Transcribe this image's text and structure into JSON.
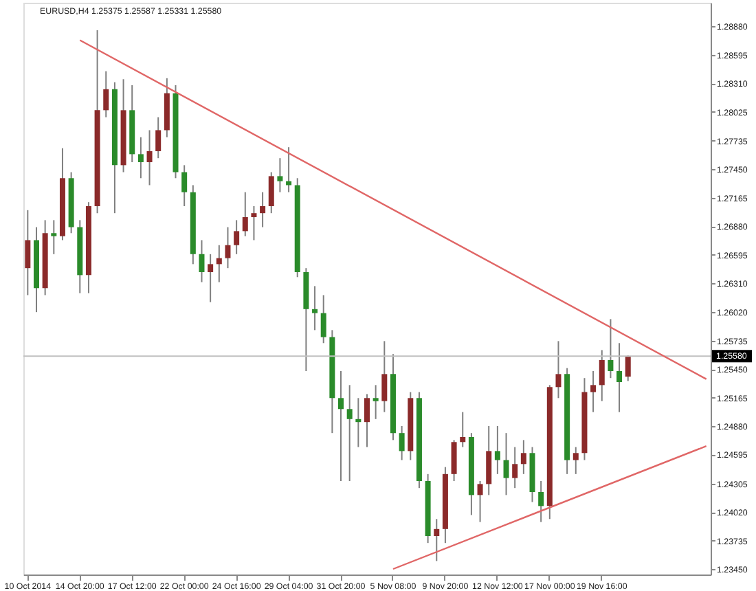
{
  "chart_data": {
    "type": "candlestick",
    "title": "EURUSD,H4 1.25375 1.25587 1.25331 1.25580",
    "categories": [
      "10 Oct 2014",
      null,
      null,
      null,
      null,
      null,
      "14 Oct 20:00",
      null,
      null,
      null,
      null,
      null,
      "17 Oct 12:00",
      null,
      null,
      null,
      null,
      null,
      "22 Oct 00:00",
      null,
      null,
      null,
      null,
      null,
      "24 Oct 16:00",
      null,
      null,
      null,
      null,
      null,
      "29 Oct 04:00",
      null,
      null,
      null,
      null,
      null,
      "31 Oct 20:00",
      null,
      null,
      null,
      null,
      null,
      "5 Nov 08:00",
      null,
      null,
      null,
      null,
      null,
      "9 Nov 20:00",
      null,
      null,
      null,
      null,
      null,
      "12 Nov 12:00",
      null,
      null,
      null,
      null,
      null,
      "17 Nov 00:00",
      null,
      null,
      null,
      null,
      null,
      "19 Nov 16:00",
      null,
      null,
      null,
      null,
      null,
      null,
      null,
      null,
      null,
      null,
      null,
      null
    ],
    "ohlc": [
      [
        1.2646,
        1.2704,
        1.2619,
        1.2674
      ],
      [
        1.2674,
        1.2687,
        1.2602,
        1.2626
      ],
      [
        1.2626,
        1.2694,
        1.2619,
        1.2681
      ],
      [
        1.2681,
        1.2694,
        1.266,
        1.2678
      ],
      [
        1.2678,
        1.2766,
        1.2674,
        1.2736
      ],
      [
        1.2736,
        1.2742,
        1.2681,
        1.2687
      ],
      [
        1.2687,
        1.2694,
        1.2621,
        1.2639
      ],
      [
        1.2639,
        1.2712,
        1.2621,
        1.2708
      ],
      [
        1.2708,
        1.2884,
        1.2701,
        1.2804
      ],
      [
        1.2804,
        1.2843,
        1.2797,
        1.2825
      ],
      [
        1.2825,
        1.2832,
        1.2701,
        1.2749
      ],
      [
        1.2749,
        1.2835,
        1.2742,
        1.2804
      ],
      [
        1.2804,
        1.2829,
        1.2752,
        1.276
      ],
      [
        1.276,
        1.2777,
        1.2736,
        1.2752
      ],
      [
        1.2752,
        1.2784,
        1.2729,
        1.2763
      ],
      [
        1.2763,
        1.2797,
        1.2756,
        1.2784
      ],
      [
        1.2784,
        1.2836,
        1.2777,
        1.2821
      ],
      [
        1.2821,
        1.2829,
        1.2736,
        1.2742
      ],
      [
        1.2742,
        1.2749,
        1.2708,
        1.2722
      ],
      [
        1.2722,
        1.2729,
        1.265,
        1.266
      ],
      [
        1.266,
        1.2674,
        1.2632,
        1.2642
      ],
      [
        1.2642,
        1.266,
        1.2612,
        1.265
      ],
      [
        1.265,
        1.2669,
        1.2632,
        1.2656
      ],
      [
        1.2656,
        1.2687,
        1.2646,
        1.2669
      ],
      [
        1.2669,
        1.2694,
        1.266,
        1.2683
      ],
      [
        1.2683,
        1.2722,
        1.2678,
        1.2697
      ],
      [
        1.2697,
        1.2708,
        1.2674,
        1.2701
      ],
      [
        1.2701,
        1.2722,
        1.2687,
        1.2708
      ],
      [
        1.2708,
        1.2742,
        1.2701,
        1.2738
      ],
      [
        1.2738,
        1.2756,
        1.2722,
        1.2733
      ],
      [
        1.2733,
        1.2767,
        1.2722,
        1.2729
      ],
      [
        1.2729,
        1.2736,
        1.2637,
        1.2642
      ],
      [
        1.2642,
        1.2646,
        1.2543,
        1.2605
      ],
      [
        1.2605,
        1.2628,
        1.2584,
        1.2601
      ],
      [
        1.2601,
        1.2619,
        1.2571,
        1.2577
      ],
      [
        1.2577,
        1.2584,
        1.2481,
        1.2516
      ],
      [
        1.2516,
        1.2543,
        1.2433,
        1.2505
      ],
      [
        1.2505,
        1.2529,
        1.2433,
        1.2495
      ],
      [
        1.2495,
        1.2516,
        1.2467,
        1.2492
      ],
      [
        1.2492,
        1.252,
        1.2467,
        1.2516
      ],
      [
        1.2516,
        1.2529,
        1.2495,
        1.2513
      ],
      [
        1.2513,
        1.2573,
        1.2502,
        1.254
      ],
      [
        1.254,
        1.256,
        1.2474,
        1.2481
      ],
      [
        1.2481,
        1.2488,
        1.2454,
        1.2463
      ],
      [
        1.2463,
        1.2522,
        1.2454,
        1.2516
      ],
      [
        1.2516,
        1.2522,
        1.2426,
        1.2433
      ],
      [
        1.2433,
        1.244,
        1.2371,
        1.2378
      ],
      [
        1.2378,
        1.2395,
        1.2353,
        1.2385
      ],
      [
        1.2385,
        1.2447,
        1.2371,
        1.244
      ],
      [
        1.244,
        1.2474,
        1.2433,
        1.2472
      ],
      [
        1.2472,
        1.2502,
        1.2467,
        1.2477
      ],
      [
        1.2477,
        1.2481,
        1.2399,
        1.2419
      ],
      [
        1.2419,
        1.2433,
        1.2392,
        1.243
      ],
      [
        1.243,
        1.2488,
        1.2419,
        1.2463
      ],
      [
        1.2463,
        1.2488,
        1.244,
        1.2454
      ],
      [
        1.2454,
        1.2481,
        1.2419,
        1.2436
      ],
      [
        1.2436,
        1.2467,
        1.2426,
        1.245
      ],
      [
        1.245,
        1.2474,
        1.244,
        1.2461
      ],
      [
        1.2461,
        1.2467,
        1.2412,
        1.2422
      ],
      [
        1.2422,
        1.2433,
        1.2392,
        1.2408
      ],
      [
        1.2408,
        1.2529,
        1.2395,
        1.2527
      ],
      [
        1.2527,
        1.2573,
        1.2516,
        1.254
      ],
      [
        1.254,
        1.2546,
        1.244,
        1.2454
      ],
      [
        1.2454,
        1.2467,
        1.244,
        1.2461
      ],
      [
        1.2461,
        1.2536,
        1.2454,
        1.2522
      ],
      [
        1.2522,
        1.2543,
        1.2502,
        1.2529
      ],
      [
        1.2529,
        1.2564,
        1.2513,
        1.2554
      ],
      [
        1.2554,
        1.2595,
        1.2536,
        1.2543
      ],
      [
        1.2543,
        1.2571,
        1.2502,
        1.2532
      ],
      [
        1.25375,
        1.25587,
        1.25331,
        1.2558
      ],
      null,
      null,
      null,
      null,
      null,
      null,
      null,
      null,
      null
    ],
    "colors": [
      "#8b2a2a",
      "#2a8b2a",
      "#8b2a2a",
      "#2a8b2a",
      "#8b2a2a",
      "#2a8b2a",
      "#2a8b2a",
      "#8b2a2a",
      "#8b2a2a",
      "#8b2a2a",
      "#2a8b2a",
      "#8b2a2a",
      "#2a8b2a",
      "#2a8b2a",
      "#8b2a2a",
      "#8b2a2a",
      "#8b2a2a",
      "#2a8b2a",
      "#2a8b2a",
      "#2a8b2a",
      "#2a8b2a",
      "#8b2a2a",
      "#8b2a2a",
      "#8b2a2a",
      "#8b2a2a",
      "#8b2a2a",
      "#8b2a2a",
      "#8b2a2a",
      "#8b2a2a",
      "#2a8b2a",
      "#2a8b2a",
      "#2a8b2a",
      "#2a8b2a",
      "#2a8b2a",
      "#2a8b2a",
      "#2a8b2a",
      "#2a8b2a",
      "#2a8b2a",
      "#2a8b2a",
      "#8b2a2a",
      "#2a8b2a",
      "#8b2a2a",
      "#2a8b2a",
      "#2a8b2a",
      "#8b2a2a",
      "#2a8b2a",
      "#2a8b2a",
      "#8b2a2a",
      "#8b2a2a",
      "#8b2a2a",
      "#8b2a2a",
      "#2a8b2a",
      "#8b2a2a",
      "#8b2a2a",
      "#2a8b2a",
      "#2a8b2a",
      "#8b2a2a",
      "#8b2a2a",
      "#2a8b2a",
      "#2a8b2a",
      "#8b2a2a",
      "#8b2a2a",
      "#2a8b2a",
      "#8b2a2a",
      "#8b2a2a",
      "#8b2a2a",
      "#8b2a2a",
      "#2a8b2a",
      "#2a8b2a",
      "#8b2a2a",
      null,
      null,
      null,
      null,
      null,
      null,
      null,
      null,
      null
    ],
    "series": [
      {
        "type": "line",
        "color": "#e06666",
        "values": [
          null,
          null,
          null,
          null,
          null,
          null,
          1.2874,
          null,
          null,
          null,
          null,
          null,
          null,
          null,
          null,
          null,
          null,
          null,
          null,
          null,
          null,
          null,
          null,
          null,
          null,
          null,
          null,
          null,
          null,
          null,
          null,
          null,
          null,
          null,
          null,
          null,
          null,
          null,
          null,
          null,
          null,
          null,
          null,
          null,
          null,
          null,
          null,
          null,
          null,
          null,
          null,
          null,
          null,
          null,
          null,
          null,
          null,
          null,
          null,
          null,
          null,
          null,
          null,
          null,
          null,
          null,
          null,
          null,
          null,
          null,
          null,
          null,
          null,
          null,
          null,
          null,
          null,
          null,
          1.2535
        ]
      },
      {
        "type": "line",
        "color": "#e06666",
        "values": [
          null,
          null,
          null,
          null,
          null,
          null,
          null,
          null,
          null,
          null,
          null,
          null,
          null,
          null,
          null,
          null,
          null,
          null,
          null,
          null,
          null,
          null,
          null,
          null,
          null,
          null,
          null,
          null,
          null,
          null,
          null,
          null,
          null,
          null,
          null,
          null,
          null,
          null,
          null,
          null,
          null,
          null,
          1.2345,
          null,
          null,
          null,
          null,
          null,
          null,
          null,
          null,
          null,
          null,
          null,
          null,
          null,
          null,
          null,
          null,
          null,
          null,
          null,
          null,
          null,
          null,
          null,
          null,
          null,
          null,
          null,
          null,
          null,
          null,
          null,
          null,
          null,
          null,
          null,
          1.2468
        ]
      }
    ],
    "ref_lines": [
      {
        "axis": "y",
        "value": 1.2558,
        "label": "1.25580",
        "color": "#c0c0c0"
      }
    ],
    "ylim": [
      1.23395,
      1.29115
    ],
    "yticks": [
      {
        "value": 1.2888,
        "label": "1.28880"
      },
      {
        "value": 1.28595,
        "label": "1.28595"
      },
      {
        "value": 1.2831,
        "label": "1.28310"
      },
      {
        "value": 1.28025,
        "label": "1.28025"
      },
      {
        "value": 1.27735,
        "label": "1.27735"
      },
      {
        "value": 1.2745,
        "label": "1.27450"
      },
      {
        "value": 1.27165,
        "label": "1.27165"
      },
      {
        "value": 1.2688,
        "label": "1.26880"
      },
      {
        "value": 1.26595,
        "label": "1.26595"
      },
      {
        "value": 1.2631,
        "label": "1.26310"
      },
      {
        "value": 1.2602,
        "label": "1.26020"
      },
      {
        "value": 1.25735,
        "label": "1.25735"
      },
      {
        "value": 1.2545,
        "label": "1.25450"
      },
      {
        "value": 1.25165,
        "label": "1.25165"
      },
      {
        "value": 1.2488,
        "label": "1.24880"
      },
      {
        "value": 1.24595,
        "label": "1.24595"
      },
      {
        "value": 1.24305,
        "label": "1.24305"
      },
      {
        "value": 1.2402,
        "label": "1.24020"
      },
      {
        "value": 1.23735,
        "label": "1.23735"
      },
      {
        "value": 1.2345,
        "label": "1.23450"
      }
    ]
  }
}
